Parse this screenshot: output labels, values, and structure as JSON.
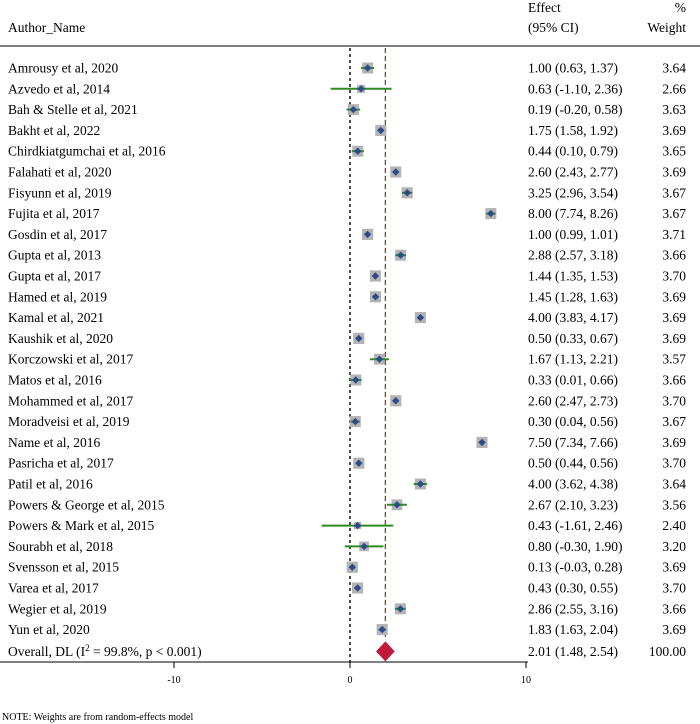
{
  "chart_data": {
    "type": "forest",
    "headers": {
      "author": "Author_Name",
      "effect_line1": "Effect",
      "effect_line2": "(95% CI)",
      "weight_line1": "%",
      "weight_line2": "Weight"
    },
    "studies": [
      {
        "label": "Amrousy et al, 2020",
        "effect": 1.0,
        "lower": 0.63,
        "upper": 1.37,
        "ci_text": "1.00 (0.63, 1.37)",
        "weight": "3.64"
      },
      {
        "label": "Azvedo et al, 2014",
        "effect": 0.63,
        "lower": -1.1,
        "upper": 2.36,
        "ci_text": "0.63 (-1.10, 2.36)",
        "weight": "2.66"
      },
      {
        "label": "Bah & Stelle et al, 2021",
        "effect": 0.19,
        "lower": -0.2,
        "upper": 0.58,
        "ci_text": "0.19 (-0.20, 0.58)",
        "weight": "3.63"
      },
      {
        "label": "Bakht et al, 2022",
        "effect": 1.75,
        "lower": 1.58,
        "upper": 1.92,
        "ci_text": "1.75 (1.58, 1.92)",
        "weight": "3.69"
      },
      {
        "label": "Chirdkiatgumchai et al, 2016",
        "effect": 0.44,
        "lower": 0.1,
        "upper": 0.79,
        "ci_text": "0.44 (0.10, 0.79)",
        "weight": "3.65"
      },
      {
        "label": "Falahati et al, 2020",
        "effect": 2.6,
        "lower": 2.43,
        "upper": 2.77,
        "ci_text": "2.60 (2.43, 2.77)",
        "weight": "3.69"
      },
      {
        "label": "Fisyunn et al, 2019",
        "effect": 3.25,
        "lower": 2.96,
        "upper": 3.54,
        "ci_text": "3.25 (2.96, 3.54)",
        "weight": "3.67"
      },
      {
        "label": "Fujita et al, 2017",
        "effect": 8.0,
        "lower": 7.74,
        "upper": 8.26,
        "ci_text": "8.00 (7.74, 8.26)",
        "weight": "3.67"
      },
      {
        "label": "Gosdin et al, 2017",
        "effect": 1.0,
        "lower": 0.99,
        "upper": 1.01,
        "ci_text": "1.00 (0.99, 1.01)",
        "weight": "3.71"
      },
      {
        "label": "Gupta et al, 2013",
        "effect": 2.88,
        "lower": 2.57,
        "upper": 3.18,
        "ci_text": "2.88 (2.57, 3.18)",
        "weight": "3.66"
      },
      {
        "label": "Gupta et al, 2017",
        "effect": 1.44,
        "lower": 1.35,
        "upper": 1.53,
        "ci_text": "1.44 (1.35, 1.53)",
        "weight": "3.70"
      },
      {
        "label": "Hamed et al, 2019",
        "effect": 1.45,
        "lower": 1.28,
        "upper": 1.63,
        "ci_text": "1.45 (1.28, 1.63)",
        "weight": "3.69"
      },
      {
        "label": "Kamal et al, 2021",
        "effect": 4.0,
        "lower": 3.83,
        "upper": 4.17,
        "ci_text": "4.00 (3.83, 4.17)",
        "weight": "3.69"
      },
      {
        "label": "Kaushik et al, 2020",
        "effect": 0.5,
        "lower": 0.33,
        "upper": 0.67,
        "ci_text": "0.50 (0.33, 0.67)",
        "weight": "3.69"
      },
      {
        "label": "Korczowski et al, 2017",
        "effect": 1.67,
        "lower": 1.13,
        "upper": 2.21,
        "ci_text": "1.67 (1.13, 2.21)",
        "weight": "3.57"
      },
      {
        "label": "Matos et al, 2016",
        "effect": 0.33,
        "lower": 0.01,
        "upper": 0.66,
        "ci_text": "0.33 (0.01, 0.66)",
        "weight": "3.66"
      },
      {
        "label": "Mohammed et al, 2017",
        "effect": 2.6,
        "lower": 2.47,
        "upper": 2.73,
        "ci_text": "2.60 (2.47, 2.73)",
        "weight": "3.70"
      },
      {
        "label": "Moradveisi et al, 2019",
        "effect": 0.3,
        "lower": 0.04,
        "upper": 0.56,
        "ci_text": "0.30 (0.04, 0.56)",
        "weight": "3.67"
      },
      {
        "label": "Name et al, 2016",
        "effect": 7.5,
        "lower": 7.34,
        "upper": 7.66,
        "ci_text": "7.50 (7.34, 7.66)",
        "weight": "3.69"
      },
      {
        "label": "Pasricha et al, 2017",
        "effect": 0.5,
        "lower": 0.44,
        "upper": 0.56,
        "ci_text": "0.50 (0.44, 0.56)",
        "weight": "3.70"
      },
      {
        "label": "Patil et al, 2016",
        "effect": 4.0,
        "lower": 3.62,
        "upper": 4.38,
        "ci_text": "4.00 (3.62, 4.38)",
        "weight": "3.64"
      },
      {
        "label": "Powers & George et al, 2015",
        "effect": 2.67,
        "lower": 2.1,
        "upper": 3.23,
        "ci_text": "2.67 (2.10, 3.23)",
        "weight": "3.56"
      },
      {
        "label": "Powers & Mark et al, 2015",
        "effect": 0.43,
        "lower": -1.61,
        "upper": 2.46,
        "ci_text": "0.43 (-1.61, 2.46)",
        "weight": "2.40"
      },
      {
        "label": "Sourabh et al, 2018",
        "effect": 0.8,
        "lower": -0.3,
        "upper": 1.9,
        "ci_text": "0.80 (-0.30, 1.90)",
        "weight": "3.20"
      },
      {
        "label": "Svensson et al, 2015",
        "effect": 0.13,
        "lower": -0.03,
        "upper": 0.28,
        "ci_text": "0.13 (-0.03, 0.28)",
        "weight": "3.69"
      },
      {
        "label": "Varea et al, 2017",
        "effect": 0.43,
        "lower": 0.3,
        "upper": 0.55,
        "ci_text": "0.43 (0.30, 0.55)",
        "weight": "3.70"
      },
      {
        "label": "Wegier et al, 2019",
        "effect": 2.86,
        "lower": 2.55,
        "upper": 3.16,
        "ci_text": "2.86 (2.55, 3.16)",
        "weight": "3.66"
      },
      {
        "label": "Yun et al, 2020",
        "effect": 1.83,
        "lower": 1.63,
        "upper": 2.04,
        "ci_text": "1.83 (1.63, 2.04)",
        "weight": "3.69"
      }
    ],
    "overall": {
      "label_prefix": "Overall, DL (I",
      "label_sup": "2",
      "label_suffix": " = 99.8%, p < 0.001)",
      "effect": 2.01,
      "lower": 1.48,
      "upper": 2.54,
      "ci_text": "2.01 (1.48, 2.54)",
      "weight": "100.00"
    },
    "x_axis": {
      "ticks": [
        -10,
        0,
        10
      ],
      "tick_labels": [
        "-10",
        "0",
        "10"
      ],
      "range": [
        -20,
        14.5
      ]
    },
    "null_line": 0,
    "note": "NOTE: Weights are from random-effects model",
    "colors": {
      "marker": "#2c4a8c",
      "box": "#b4b4b4",
      "ci": "#2e8b22",
      "overall": "#c2183a",
      "ref_line": "#8b4513",
      "axis": "#000000"
    }
  }
}
